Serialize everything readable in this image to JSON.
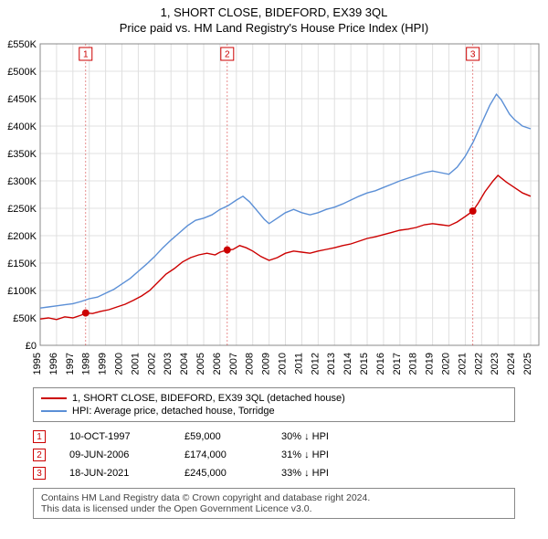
{
  "title_line1": "1, SHORT CLOSE, BIDEFORD, EX39 3QL",
  "title_line2": "Price paid vs. HM Land Registry's House Price Index (HPI)",
  "chart": {
    "type": "line",
    "background_color": "#ffffff",
    "grid_color": "#e0e0e0",
    "axis_color": "#888888",
    "x_years": [
      1995,
      1996,
      1997,
      1998,
      1999,
      2000,
      2001,
      2002,
      2003,
      2004,
      2005,
      2006,
      2007,
      2008,
      2009,
      2010,
      2011,
      2012,
      2013,
      2014,
      2015,
      2016,
      2017,
      2018,
      2019,
      2020,
      2021,
      2022,
      2023,
      2024,
      2025
    ],
    "y_ticks": [
      0,
      50000,
      100000,
      150000,
      200000,
      250000,
      300000,
      350000,
      400000,
      450000,
      500000,
      550000
    ],
    "y_tick_labels": [
      "£0",
      "£50K",
      "£100K",
      "£150K",
      "£200K",
      "£250K",
      "£300K",
      "£350K",
      "£400K",
      "£450K",
      "£500K",
      "£550K"
    ],
    "ylim": [
      0,
      550000
    ],
    "xlim": [
      1995,
      2025.5
    ],
    "label_fontsize": 11,
    "series": [
      {
        "name": "property_price",
        "color": "#cc0000",
        "stroke_width": 1.4,
        "legend_label": "1, SHORT CLOSE, BIDEFORD, EX39 3QL (detached house)",
        "points": [
          [
            1995.0,
            48000
          ],
          [
            1995.5,
            50000
          ],
          [
            1996.0,
            47000
          ],
          [
            1996.5,
            52000
          ],
          [
            1997.0,
            50000
          ],
          [
            1997.5,
            55000
          ],
          [
            1997.78,
            59000
          ],
          [
            1998.2,
            58000
          ],
          [
            1998.7,
            62000
          ],
          [
            1999.2,
            65000
          ],
          [
            1999.7,
            70000
          ],
          [
            2000.2,
            75000
          ],
          [
            2000.7,
            82000
          ],
          [
            2001.2,
            90000
          ],
          [
            2001.7,
            100000
          ],
          [
            2002.2,
            115000
          ],
          [
            2002.7,
            130000
          ],
          [
            2003.2,
            140000
          ],
          [
            2003.7,
            152000
          ],
          [
            2004.2,
            160000
          ],
          [
            2004.7,
            165000
          ],
          [
            2005.2,
            168000
          ],
          [
            2005.7,
            165000
          ],
          [
            2006.0,
            170000
          ],
          [
            2006.44,
            174000
          ],
          [
            2006.8,
            175000
          ],
          [
            2007.2,
            182000
          ],
          [
            2007.6,
            178000
          ],
          [
            2008.0,
            172000
          ],
          [
            2008.5,
            162000
          ],
          [
            2009.0,
            155000
          ],
          [
            2009.5,
            160000
          ],
          [
            2010.0,
            168000
          ],
          [
            2010.5,
            172000
          ],
          [
            2011.0,
            170000
          ],
          [
            2011.5,
            168000
          ],
          [
            2012.0,
            172000
          ],
          [
            2012.5,
            175000
          ],
          [
            2013.0,
            178000
          ],
          [
            2013.5,
            182000
          ],
          [
            2014.0,
            185000
          ],
          [
            2014.5,
            190000
          ],
          [
            2015.0,
            195000
          ],
          [
            2015.5,
            198000
          ],
          [
            2016.0,
            202000
          ],
          [
            2016.5,
            206000
          ],
          [
            2017.0,
            210000
          ],
          [
            2017.5,
            212000
          ],
          [
            2018.0,
            215000
          ],
          [
            2018.5,
            220000
          ],
          [
            2019.0,
            222000
          ],
          [
            2019.5,
            220000
          ],
          [
            2020.0,
            218000
          ],
          [
            2020.5,
            225000
          ],
          [
            2021.0,
            235000
          ],
          [
            2021.46,
            245000
          ],
          [
            2021.8,
            260000
          ],
          [
            2022.2,
            280000
          ],
          [
            2022.7,
            300000
          ],
          [
            2023.0,
            310000
          ],
          [
            2023.5,
            298000
          ],
          [
            2024.0,
            288000
          ],
          [
            2024.5,
            278000
          ],
          [
            2025.0,
            272000
          ]
        ]
      },
      {
        "name": "hpi_torridge",
        "color": "#5b8fd6",
        "stroke_width": 1.4,
        "legend_label": "HPI: Average price, detached house, Torridge",
        "points": [
          [
            1995.0,
            68000
          ],
          [
            1995.5,
            70000
          ],
          [
            1996.0,
            72000
          ],
          [
            1996.5,
            74000
          ],
          [
            1997.0,
            76000
          ],
          [
            1997.5,
            80000
          ],
          [
            1998.0,
            85000
          ],
          [
            1998.5,
            88000
          ],
          [
            1999.0,
            95000
          ],
          [
            1999.5,
            102000
          ],
          [
            2000.0,
            112000
          ],
          [
            2000.5,
            122000
          ],
          [
            2001.0,
            135000
          ],
          [
            2001.5,
            148000
          ],
          [
            2002.0,
            162000
          ],
          [
            2002.5,
            178000
          ],
          [
            2003.0,
            192000
          ],
          [
            2003.5,
            205000
          ],
          [
            2004.0,
            218000
          ],
          [
            2004.5,
            228000
          ],
          [
            2005.0,
            232000
          ],
          [
            2005.5,
            238000
          ],
          [
            2006.0,
            248000
          ],
          [
            2006.5,
            255000
          ],
          [
            2007.0,
            265000
          ],
          [
            2007.4,
            272000
          ],
          [
            2007.8,
            262000
          ],
          [
            2008.2,
            248000
          ],
          [
            2008.7,
            230000
          ],
          [
            2009.0,
            222000
          ],
          [
            2009.5,
            232000
          ],
          [
            2010.0,
            242000
          ],
          [
            2010.5,
            248000
          ],
          [
            2011.0,
            242000
          ],
          [
            2011.5,
            238000
          ],
          [
            2012.0,
            242000
          ],
          [
            2012.5,
            248000
          ],
          [
            2013.0,
            252000
          ],
          [
            2013.5,
            258000
          ],
          [
            2014.0,
            265000
          ],
          [
            2014.5,
            272000
          ],
          [
            2015.0,
            278000
          ],
          [
            2015.5,
            282000
          ],
          [
            2016.0,
            288000
          ],
          [
            2016.5,
            294000
          ],
          [
            2017.0,
            300000
          ],
          [
            2017.5,
            305000
          ],
          [
            2018.0,
            310000
          ],
          [
            2018.5,
            315000
          ],
          [
            2019.0,
            318000
          ],
          [
            2019.5,
            315000
          ],
          [
            2020.0,
            312000
          ],
          [
            2020.5,
            325000
          ],
          [
            2021.0,
            345000
          ],
          [
            2021.5,
            372000
          ],
          [
            2022.0,
            405000
          ],
          [
            2022.5,
            438000
          ],
          [
            2022.9,
            458000
          ],
          [
            2023.2,
            448000
          ],
          [
            2023.7,
            422000
          ],
          [
            2024.0,
            412000
          ],
          [
            2024.5,
            400000
          ],
          [
            2025.0,
            395000
          ]
        ]
      }
    ],
    "transaction_markers": [
      {
        "num": "1",
        "year": 1997.78,
        "price": 59000
      },
      {
        "num": "2",
        "year": 2006.44,
        "price": 174000
      },
      {
        "num": "3",
        "year": 2021.46,
        "price": 245000
      }
    ]
  },
  "transactions": [
    {
      "num": "1",
      "date": "10-OCT-1997",
      "price": "£59,000",
      "delta": "30% ↓ HPI"
    },
    {
      "num": "2",
      "date": "09-JUN-2006",
      "price": "£174,000",
      "delta": "31% ↓ HPI"
    },
    {
      "num": "3",
      "date": "18-JUN-2021",
      "price": "£245,000",
      "delta": "33% ↓ HPI"
    }
  ],
  "footnote_line1": "Contains HM Land Registry data © Crown copyright and database right 2024.",
  "footnote_line2": "This data is licensed under the Open Government Licence v3.0.",
  "colors": {
    "property": "#cc0000",
    "hpi": "#5b8fd6",
    "grid": "#e0e0e0",
    "axis": "#888888",
    "text": "#000000",
    "footnote_text": "#444444"
  }
}
